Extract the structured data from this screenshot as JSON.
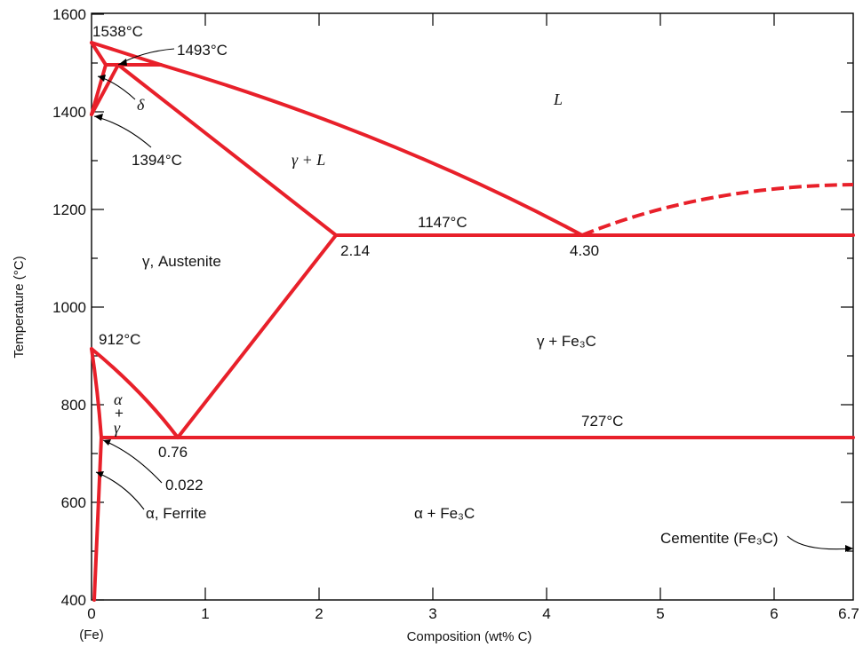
{
  "axes": {
    "ylabel": "Temperature (°C)",
    "xlabel": "Composition (wt% C)",
    "x_ticks": [
      "0",
      "1",
      "2",
      "3",
      "4",
      "5",
      "6",
      "6.7"
    ],
    "x_sub": "(Fe)",
    "y_ticks": [
      "400",
      "600",
      "800",
      "1000",
      "1200",
      "1400",
      "1600"
    ]
  },
  "labels": {
    "t1538": "1538°C",
    "t1493": "1493°C",
    "delta": "δ",
    "t1394": "1394°C",
    "L": "L",
    "gamma_L": "γ + L",
    "t1147": "1147°C",
    "c214": "2.14",
    "c430": "4.30",
    "austenite": "γ, Austenite",
    "t912": "912°C",
    "gamma_fe3c": "γ + Fe₃C",
    "alpha_gamma_a": "α",
    "alpha_gamma_plus": "+",
    "alpha_gamma_g": "γ",
    "t727": "727°C",
    "c076": "0.76",
    "c0022": "0.022",
    "ferrite": "α, Ferrite",
    "alpha_fe3c": "α + Fe₃C",
    "cementite": "Cementite (Fe₃C)"
  },
  "chart_data": {
    "type": "phase-diagram",
    "xlabel": "Composition (wt% C)",
    "ylabel": "Temperature (°C)",
    "xlim": [
      0,
      6.7
    ],
    "ylim": [
      400,
      1600
    ],
    "boundaries": [
      {
        "points": [
          [
            0,
            1538
          ],
          [
            0.5,
            1493
          ]
        ]
      },
      {
        "points": [
          [
            0,
            1538
          ],
          [
            0.1,
            1493
          ]
        ]
      },
      {
        "points": [
          [
            0.1,
            1493
          ],
          [
            0.6,
            1493
          ]
        ]
      },
      {
        "points": [
          [
            0,
            1394
          ],
          [
            0.1,
            1493
          ]
        ]
      },
      {
        "points": [
          [
            0,
            1394
          ],
          [
            0.16,
            1493
          ]
        ]
      },
      {
        "points": [
          [
            0.5,
            1493
          ],
          [
            4.3,
            1147
          ]
        ]
      },
      {
        "points": [
          [
            0.16,
            1493
          ],
          [
            2.14,
            1147
          ]
        ]
      },
      {
        "points": [
          [
            2.14,
            1147
          ],
          [
            6.7,
            1147
          ]
        ]
      },
      {
        "points": [
          [
            4.3,
            1147
          ],
          [
            6.7,
            1250
          ]
        ],
        "dashed": true
      },
      {
        "points": [
          [
            2.14,
            1147
          ],
          [
            0.76,
            727
          ]
        ]
      },
      {
        "points": [
          [
            0,
            912
          ],
          [
            0.76,
            727
          ]
        ]
      },
      {
        "points": [
          [
            0,
            912
          ],
          [
            0.022,
            727
          ]
        ]
      },
      {
        "points": [
          [
            0.022,
            727
          ],
          [
            6.7,
            727
          ]
        ]
      },
      {
        "points": [
          [
            0.022,
            727
          ],
          [
            0,
            400
          ]
        ]
      }
    ],
    "points": [
      {
        "label": "1538°C",
        "x": 0,
        "y": 1538
      },
      {
        "label": "1493°C",
        "x": 0.16,
        "y": 1493
      },
      {
        "label": "1394°C",
        "x": 0,
        "y": 1394
      },
      {
        "label": "1147°C",
        "x": 4.3,
        "y": 1147
      },
      {
        "label": "912°C",
        "x": 0,
        "y": 912
      },
      {
        "label": "727°C",
        "x": 0.76,
        "y": 727
      },
      {
        "label": "2.14",
        "x": 2.14,
        "y": 1147
      },
      {
        "label": "4.30",
        "x": 4.3,
        "y": 1147
      },
      {
        "label": "0.76",
        "x": 0.76,
        "y": 727
      },
      {
        "label": "0.022",
        "x": 0.022,
        "y": 727
      }
    ]
  }
}
